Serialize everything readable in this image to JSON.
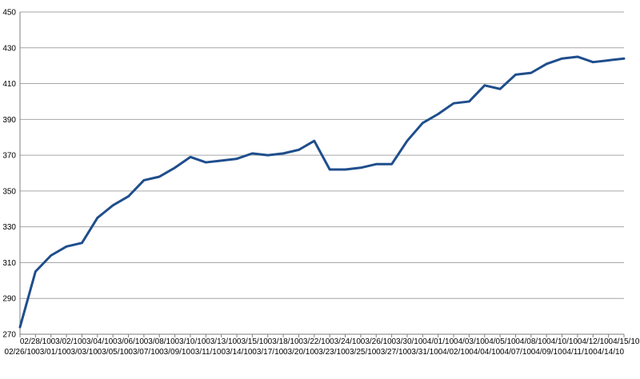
{
  "chart_data": {
    "type": "line",
    "title": "",
    "xlabel": "",
    "ylabel": "",
    "ylim": [
      270,
      450
    ],
    "y_ticks": [
      270,
      290,
      310,
      330,
      350,
      370,
      390,
      410,
      430,
      450
    ],
    "grid": true,
    "legend": "none",
    "categories": [
      "02/26/10",
      "02/28/10",
      "03/01/10",
      "03/02/10",
      "03/03/10",
      "03/04/10",
      "03/05/10",
      "03/06/10",
      "03/07/10",
      "03/08/10",
      "03/09/10",
      "03/10/10",
      "03/11/10",
      "03/13/10",
      "03/14/10",
      "03/15/10",
      "03/17/10",
      "03/18/10",
      "03/20/10",
      "03/22/10",
      "03/23/10",
      "03/24/10",
      "03/25/10",
      "03/26/10",
      "03/27/10",
      "03/30/10",
      "03/31/10",
      "04/01/10",
      "04/02/10",
      "04/03/10",
      "04/04/10",
      "04/05/10",
      "04/07/10",
      "04/08/10",
      "04/09/10",
      "04/10/10",
      "04/11/10",
      "04/12/10",
      "04/14/10",
      "04/15/10"
    ],
    "series": [
      {
        "color": "#1F4E8C",
        "values": [
          274,
          305,
          314,
          319,
          321,
          335,
          342,
          347,
          356,
          358,
          363,
          369,
          366,
          367,
          368,
          371,
          370,
          371,
          373,
          378,
          362,
          362,
          363,
          365,
          365,
          378,
          388,
          393,
          399,
          400,
          409,
          407,
          415,
          416,
          421,
          424,
          425,
          422,
          423,
          424
        ]
      }
    ],
    "gridline_color": "#A6A6A6",
    "axis_color": "#7F7F7F"
  }
}
